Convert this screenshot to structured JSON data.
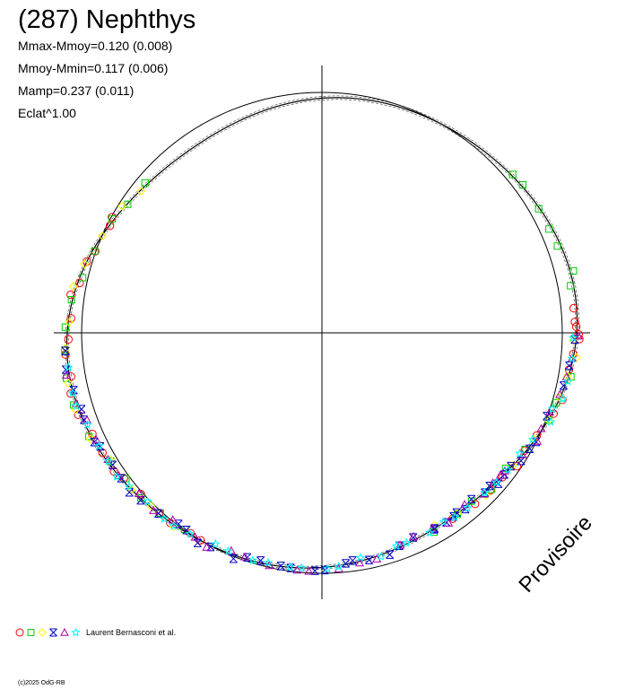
{
  "title": "(287) Nephthys",
  "stats": [
    "Mmax-Mmoy=0.120 (0.008)",
    "Mmoy-Mmin=0.117 (0.006)",
    "Mamp=0.237 (0.011)",
    "Eclat^1.00"
  ],
  "author": "Laurent Bernasconi et al.",
  "copyright": "(c)2025 OdG-RB",
  "watermark": "Provisoire",
  "colors": {
    "axis": "#000000",
    "curve": "#000000",
    "circle": "#000000",
    "series": [
      "#ff0000",
      "#00cc00",
      "#ffff00",
      "#0000cc",
      "#aa00aa",
      "#00ffff"
    ]
  },
  "chart_data": {
    "type": "scatter",
    "title": "(287) Nephthys",
    "coordinate_system": "polar",
    "legend_placement": "bottom-left",
    "grid": false,
    "reference_circle": true,
    "annotations": [
      "Mmax-Mmoy=0.120 (0.008)",
      "Mmoy-Mmin=0.117 (0.006)",
      "Mamp=0.237 (0.011)",
      "Eclat^1.00"
    ],
    "series": [
      {
        "marker": "circle",
        "color": "#ff0000",
        "arcs": [
          [
            150,
            240,
            21
          ],
          [
            0,
            5,
            4
          ],
          [
            306,
            360,
            12
          ]
        ]
      },
      {
        "marker": "square",
        "color": "#00cc00",
        "arcs": [
          [
            140,
            236,
            16
          ],
          [
            10,
            40,
            7
          ],
          [
            300,
            350,
            9
          ]
        ]
      },
      {
        "marker": "diamond",
        "color": "#ffff00",
        "arcs": [
          [
            142,
            232,
            14
          ],
          [
            345,
            358,
            5
          ],
          [
            300,
            340,
            6
          ]
        ]
      },
      {
        "marker": "bowtie",
        "color": "#0000cc",
        "arcs": [
          [
            185,
            330,
            38
          ],
          [
            300,
            360,
            10
          ]
        ]
      },
      {
        "marker": "triangle",
        "color": "#aa00aa",
        "arcs": [
          [
            190,
            320,
            26
          ],
          [
            320,
            360,
            10
          ]
        ]
      },
      {
        "marker": "star",
        "color": "#00ffff",
        "arcs": [
          [
            188,
            320,
            30
          ],
          [
            325,
            358,
            9
          ]
        ]
      }
    ]
  }
}
